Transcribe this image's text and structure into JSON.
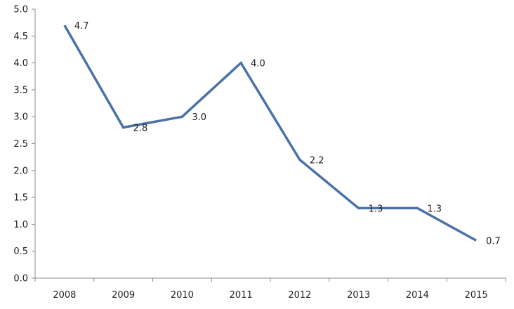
{
  "chart_data": {
    "type": "line",
    "title": "",
    "xlabel": "",
    "ylabel": "",
    "categories": [
      "2008",
      "2009",
      "2010",
      "2011",
      "2012",
      "2013",
      "2014",
      "2015"
    ],
    "series": [
      {
        "values": [
          4.7,
          2.8,
          3.0,
          4.0,
          2.2,
          1.3,
          1.3,
          0.7
        ],
        "labels": [
          "4.7",
          "2.8",
          "3.0",
          "4.0",
          "2.2",
          "1.3",
          "1.3",
          "0.7"
        ],
        "color": "#4a72a8"
      }
    ],
    "ylim": [
      0,
      5
    ],
    "yticks": [
      "0.0",
      "0.5",
      "1.0",
      "1.5",
      "2.0",
      "2.5",
      "3.0",
      "3.5",
      "4.0",
      "4.5",
      "5.0"
    ],
    "grid": false,
    "legend": "none"
  }
}
